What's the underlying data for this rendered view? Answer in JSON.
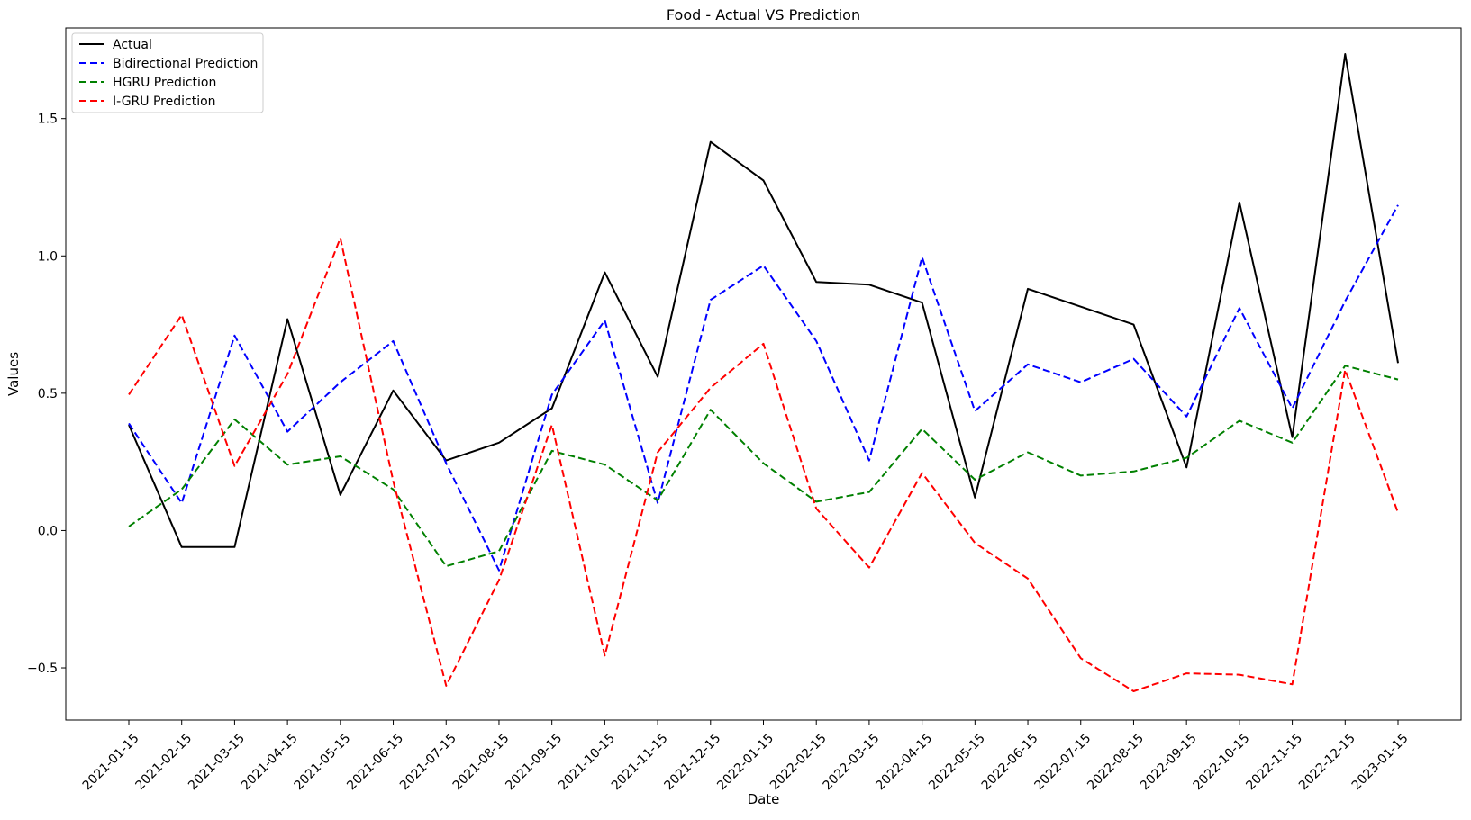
{
  "chart_data": {
    "type": "line",
    "title": "Food - Actual VS Prediction",
    "xlabel": "Date",
    "ylabel": "Values",
    "ylim": [
      -0.69,
      1.83
    ],
    "yticks": [
      -0.5,
      0.0,
      0.5,
      1.0,
      1.5
    ],
    "ytick_labels": [
      "−0.5",
      "0.0",
      "0.5",
      "1.0",
      "1.5"
    ],
    "grid": false,
    "legend_position": "top-left",
    "categories": [
      "2021-01-15",
      "2021-02-15",
      "2021-03-15",
      "2021-04-15",
      "2021-05-15",
      "2021-06-15",
      "2021-07-15",
      "2021-08-15",
      "2021-09-15",
      "2021-10-15",
      "2021-11-15",
      "2021-12-15",
      "2022-01-15",
      "2022-02-15",
      "2022-03-15",
      "2022-04-15",
      "2022-05-15",
      "2022-06-15",
      "2022-07-15",
      "2022-08-15",
      "2022-09-15",
      "2022-10-15",
      "2022-11-15",
      "2022-12-15",
      "2023-01-15"
    ],
    "series": [
      {
        "name": "Actual",
        "color": "#000000",
        "dash": "solid",
        "values": [
          0.385,
          -0.06,
          -0.06,
          0.77,
          0.13,
          0.51,
          0.255,
          0.32,
          0.445,
          0.94,
          0.56,
          1.415,
          1.275,
          0.905,
          0.895,
          0.83,
          0.12,
          0.88,
          0.815,
          0.75,
          0.23,
          1.195,
          0.34,
          1.735,
          0.61
        ]
      },
      {
        "name": "Bidirectional Prediction",
        "color": "#0000ff",
        "dash": "dashed",
        "values": [
          0.39,
          0.1,
          0.71,
          0.36,
          0.54,
          0.69,
          0.245,
          -0.145,
          0.495,
          0.765,
          0.1,
          0.84,
          0.965,
          0.69,
          0.255,
          0.995,
          0.435,
          0.605,
          0.54,
          0.625,
          0.415,
          0.81,
          0.445,
          0.835,
          1.185
        ]
      },
      {
        "name": "HGRU Prediction",
        "color": "#008000",
        "dash": "dashed",
        "values": [
          0.015,
          0.15,
          0.405,
          0.24,
          0.27,
          0.15,
          -0.13,
          -0.075,
          0.29,
          0.24,
          0.11,
          0.44,
          0.245,
          0.105,
          0.14,
          0.37,
          0.185,
          0.285,
          0.2,
          0.215,
          0.265,
          0.4,
          0.32,
          0.6,
          0.55
        ]
      },
      {
        "name": "I-GRU Prediction",
        "color": "#ff0000",
        "dash": "dashed",
        "values": [
          0.495,
          0.785,
          0.235,
          0.57,
          1.065,
          0.18,
          -0.565,
          -0.18,
          0.385,
          -0.455,
          0.285,
          0.52,
          0.68,
          0.08,
          -0.135,
          0.21,
          -0.045,
          -0.175,
          -0.465,
          -0.585,
          -0.52,
          -0.525,
          -0.56,
          0.585,
          0.065
        ]
      }
    ]
  }
}
